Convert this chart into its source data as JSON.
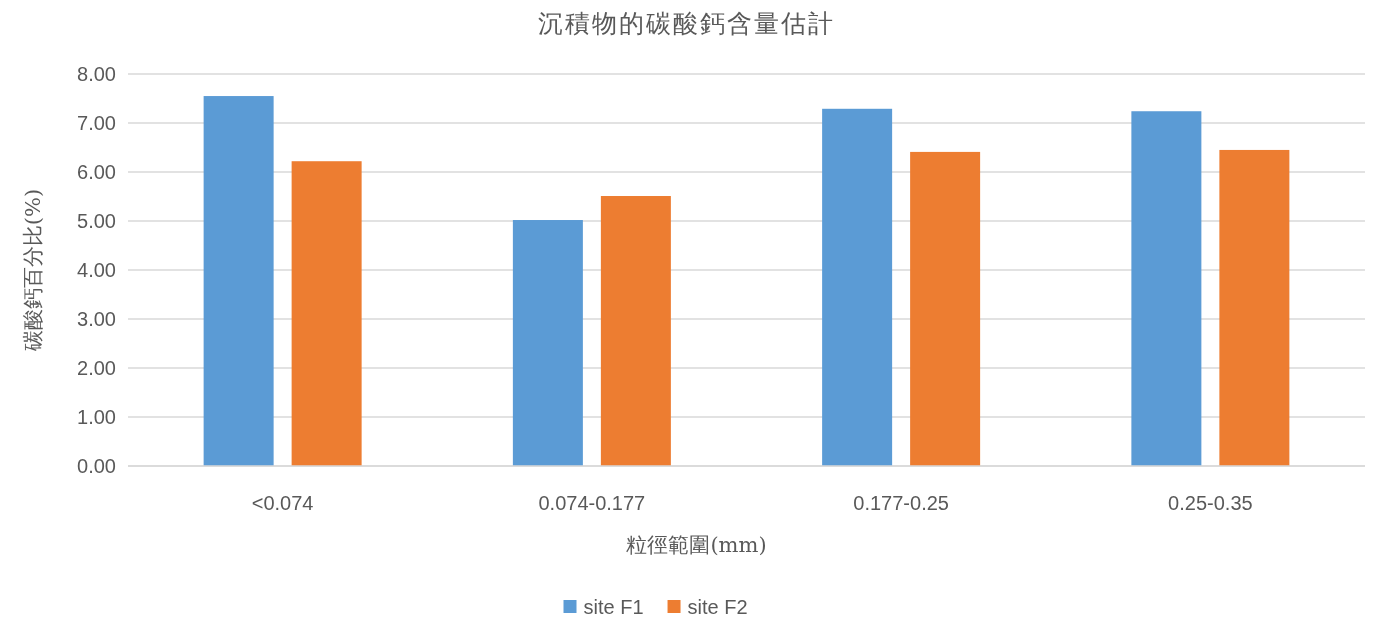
{
  "chart_data": {
    "type": "bar",
    "title": "沉積物的碳酸鈣含量估計",
    "xlabel": "粒徑範圍(mm)",
    "ylabel": "碳酸鈣百分比(%)",
    "categories": [
      "<0.074",
      "0.074-0.177",
      "0.177-0.25",
      "0.25-0.35"
    ],
    "series": [
      {
        "name": "site F1",
        "color": "#5b9bd5",
        "values": [
          7.55,
          5.02,
          7.29,
          7.24
        ]
      },
      {
        "name": "site F2",
        "color": "#ed7d31",
        "values": [
          6.22,
          5.51,
          6.41,
          6.45
        ]
      }
    ],
    "ylim": [
      0,
      8
    ],
    "yticks": [
      {
        "value": 0,
        "label": "0.00"
      },
      {
        "value": 1,
        "label": "1.00"
      },
      {
        "value": 2,
        "label": "2.00"
      },
      {
        "value": 3,
        "label": "3.00"
      },
      {
        "value": 4,
        "label": "4.00"
      },
      {
        "value": 5,
        "label": "5.00"
      },
      {
        "value": 6,
        "label": "6.00"
      },
      {
        "value": 7,
        "label": "7.00"
      },
      {
        "value": 8,
        "label": "8.00"
      }
    ],
    "grid": "y",
    "legend": "bottom"
  }
}
